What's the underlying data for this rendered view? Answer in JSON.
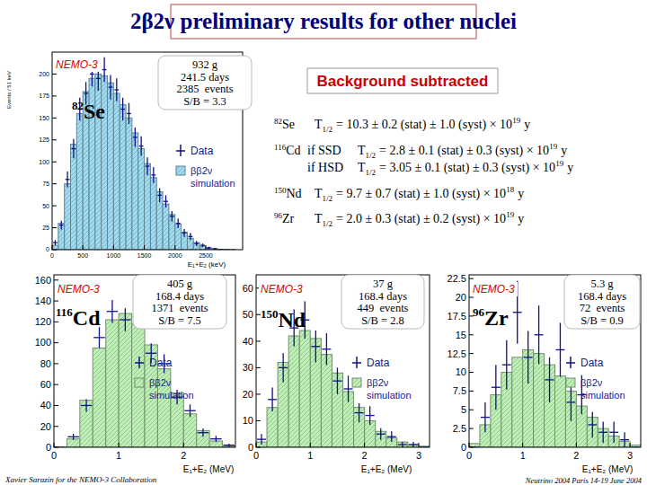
{
  "header": {
    "title": "2β2ν preliminary results for other nuclei"
  },
  "note": "Background subtracted",
  "results": [
    {
      "mass": "82",
      "symbol": "Se",
      "lhs": "T",
      "sub": "1/2",
      "rhs": "= 10.3 ± 0.2 (stat) ± 1.0 (syst) × 10",
      "exp": "19",
      "unit": "y"
    },
    {
      "mass": "116",
      "symbol": "Cd",
      "cond": "if SSD",
      "lhs": "T",
      "sub": "1/2",
      "rhs": "= 2.8 ± 0.1 (stat) ± 0.3 (syst) × 10",
      "exp": "19",
      "unit": "y"
    },
    {
      "cond": "if HSD",
      "lhs": "T",
      "sub": "1/2",
      "rhs": "= 3.05 ± 0.1 (stat) ± 0.3 (syst) × 10",
      "exp": "19",
      "unit": "y"
    },
    {
      "mass": "150",
      "symbol": "Nd",
      "lhs": "T",
      "sub": "1/2",
      "rhs": "= 9.7 ± 0.7 (stat) ± 1.0 (syst) × 10",
      "exp": "18",
      "unit": "y"
    },
    {
      "mass": "96",
      "symbol": "Zr",
      "lhs": "T",
      "sub": "1/2",
      "rhs": "= 2.0 ± 0.3 (stat) ± 0.2 (syst) × 10",
      "exp": "19",
      "unit": "y"
    }
  ],
  "footer": {
    "left": "Xavier Sarazin for the NEMO-3 Collaboration",
    "right": "Neutrino 2004 Paris 14-19 June 2004"
  },
  "chart_data": [
    {
      "type": "histogram",
      "title": "NEMO-3",
      "nucleus": {
        "mass": "82",
        "symbol": "Se"
      },
      "info": [
        "932 g",
        "241.5 days",
        "2385  events",
        "S/B = 3.3"
      ],
      "xlabel": "E₁+E₂ (keV)",
      "ylabel": "Events / 51 keV",
      "bins": [
        0,
        100,
        200,
        300,
        400,
        500,
        600,
        700,
        800,
        900,
        1000,
        1100,
        1200,
        1300,
        1400,
        1500,
        1600,
        1700,
        1800,
        1900,
        2000,
        2100,
        2200,
        2300,
        2400,
        2500,
        2600,
        2700,
        2800,
        2900,
        3000
      ],
      "xlim": [
        0,
        3100
      ],
      "ylim": [
        0,
        225
      ],
      "xticks": [
        0,
        500,
        1000,
        1500,
        2000,
        2500
      ],
      "yticks": [
        0,
        25,
        50,
        75,
        100,
        125,
        150,
        175,
        200
      ],
      "series": [
        {
          "name": "Data",
          "type": "errorbar",
          "color": "#10108a",
          "values": [
            8,
            28,
            80,
            115,
            160,
            178,
            200,
            195,
            205,
            185,
            182,
            160,
            155,
            128,
            118,
            95,
            85,
            62,
            55,
            38,
            30,
            19,
            15,
            7,
            5,
            2,
            1,
            0,
            0,
            0
          ],
          "errors": [
            3,
            5,
            9,
            11,
            13,
            13,
            14,
            14,
            14,
            14,
            13,
            13,
            12,
            11,
            11,
            10,
            9,
            8,
            7,
            6,
            5.5,
            4.5,
            4,
            3,
            2,
            1.5,
            1,
            0,
            0,
            0
          ]
        },
        {
          "name": "ββ2ν simulation",
          "type": "bar",
          "color": "#9fdcf2",
          "values": [
            5,
            30,
            75,
            120,
            155,
            180,
            195,
            200,
            198,
            190,
            178,
            165,
            150,
            133,
            115,
            98,
            82,
            66,
            52,
            40,
            29,
            20,
            13,
            8,
            4,
            2,
            1,
            0.5,
            0.2,
            0
          ]
        }
      ]
    },
    {
      "type": "histogram",
      "title": "NEMO-3",
      "nucleus": {
        "mass": "116",
        "symbol": "Cd"
      },
      "info": [
        "405 g",
        "168.4 days",
        "1371  events",
        "S/B = 7.5"
      ],
      "xlabel": "E₁+E₂ (MeV)",
      "bins": [
        0,
        0.2,
        0.4,
        0.6,
        0.8,
        1.0,
        1.2,
        1.4,
        1.6,
        1.8,
        2.0,
        2.2,
        2.4,
        2.6,
        2.8
      ],
      "xlim": [
        0,
        2.8
      ],
      "ylim": [
        0,
        165
      ],
      "xticks": [
        0,
        1,
        2
      ],
      "yticks": [
        0,
        20,
        40,
        60,
        80,
        100,
        120,
        140,
        160
      ],
      "series": [
        {
          "name": "Data",
          "type": "errorbar",
          "color": "#10108a",
          "values": [
            0,
            10,
            40,
            105,
            130,
            122,
            125,
            90,
            80,
            48,
            35,
            14,
            8,
            2
          ],
          "errors": [
            0,
            3,
            6,
            10,
            11,
            11,
            11,
            9.5,
            9,
            7,
            6,
            4,
            3,
            1.5
          ]
        },
        {
          "name": "ββ2ν simulation",
          "type": "bar",
          "color": "#bdf0b5",
          "values": [
            0,
            8,
            45,
            95,
            122,
            128,
            118,
            98,
            75,
            52,
            32,
            16,
            6,
            1
          ]
        }
      ]
    },
    {
      "type": "histogram",
      "title": "NEMO-3",
      "nucleus": {
        "mass": "150",
        "symbol": "Nd"
      },
      "info": [
        "37 g",
        "168.4 days",
        "449  events",
        "S/B = 2.8"
      ],
      "xlabel": "E₁+E₂ (MeV)",
      "bins": [
        0,
        0.2,
        0.4,
        0.6,
        0.8,
        1.0,
        1.2,
        1.4,
        1.6,
        1.8,
        2.0,
        2.2,
        2.4,
        2.6,
        2.8,
        3.0,
        3.2,
        3.4
      ],
      "xlim": [
        0,
        3.2
      ],
      "ylim": [
        0,
        65
      ],
      "xticks": [
        0,
        1,
        2,
        3
      ],
      "yticks": [
        0,
        10,
        20,
        30,
        40,
        50,
        60
      ],
      "series": [
        {
          "name": "Data",
          "type": "errorbar",
          "color": "#10108a",
          "values": [
            3,
            18,
            30,
            45,
            48,
            38,
            37,
            25,
            22,
            13,
            12,
            5,
            4,
            1,
            1,
            0,
            0
          ],
          "errors": [
            2,
            4.5,
            5.5,
            7,
            7,
            6,
            6,
            5,
            5,
            3.6,
            3.5,
            2.2,
            2,
            1,
            1,
            0,
            0
          ]
        },
        {
          "name": "ββ2ν simulation",
          "type": "bar",
          "color": "#bdf0b5",
          "values": [
            2,
            15,
            32,
            42,
            44,
            41,
            35,
            28,
            21,
            15,
            10,
            6,
            3.5,
            2,
            1,
            0.4,
            0.1
          ]
        }
      ]
    },
    {
      "type": "histogram",
      "title": "NEMO-3",
      "nucleus": {
        "mass": "96",
        "symbol": "Zr"
      },
      "info": [
        "5.3 g",
        "168.4 days",
        "72  events",
        "S/B = 0.9"
      ],
      "xlabel": "E₁+E₂ (MeV)",
      "bins": [
        0,
        0.2,
        0.4,
        0.6,
        0.8,
        1.0,
        1.2,
        1.4,
        1.6,
        1.8,
        2.0,
        2.2,
        2.4,
        2.6,
        2.8,
        3.0,
        3.2,
        3.4
      ],
      "xlim": [
        0,
        3.2
      ],
      "ylim": [
        0,
        23
      ],
      "xticks": [
        0,
        1,
        2,
        3
      ],
      "yticks": [
        0,
        2.5,
        5,
        7.5,
        10,
        12.5,
        15,
        17.5,
        20,
        22.5
      ],
      "series": [
        {
          "name": "Data",
          "type": "errorbar",
          "color": "#10108a",
          "values": [
            0,
            4,
            8,
            11,
            18,
            12,
            15,
            9,
            13,
            6,
            7,
            3,
            2,
            2,
            1,
            0,
            0
          ],
          "errors": [
            0,
            2,
            3,
            3.3,
            4.2,
            3.5,
            3.9,
            3,
            3.6,
            2.5,
            2.6,
            1.7,
            1.4,
            1.4,
            1,
            0,
            0
          ]
        },
        {
          "name": "ββ2ν simulation",
          "type": "bar",
          "color": "#bdf0b5",
          "values": [
            0.5,
            3,
            7,
            10,
            12,
            13,
            12.5,
            11,
            9.5,
            7.5,
            5.5,
            4,
            2.5,
            1.5,
            0.8,
            0.3,
            0.1
          ]
        }
      ]
    }
  ]
}
